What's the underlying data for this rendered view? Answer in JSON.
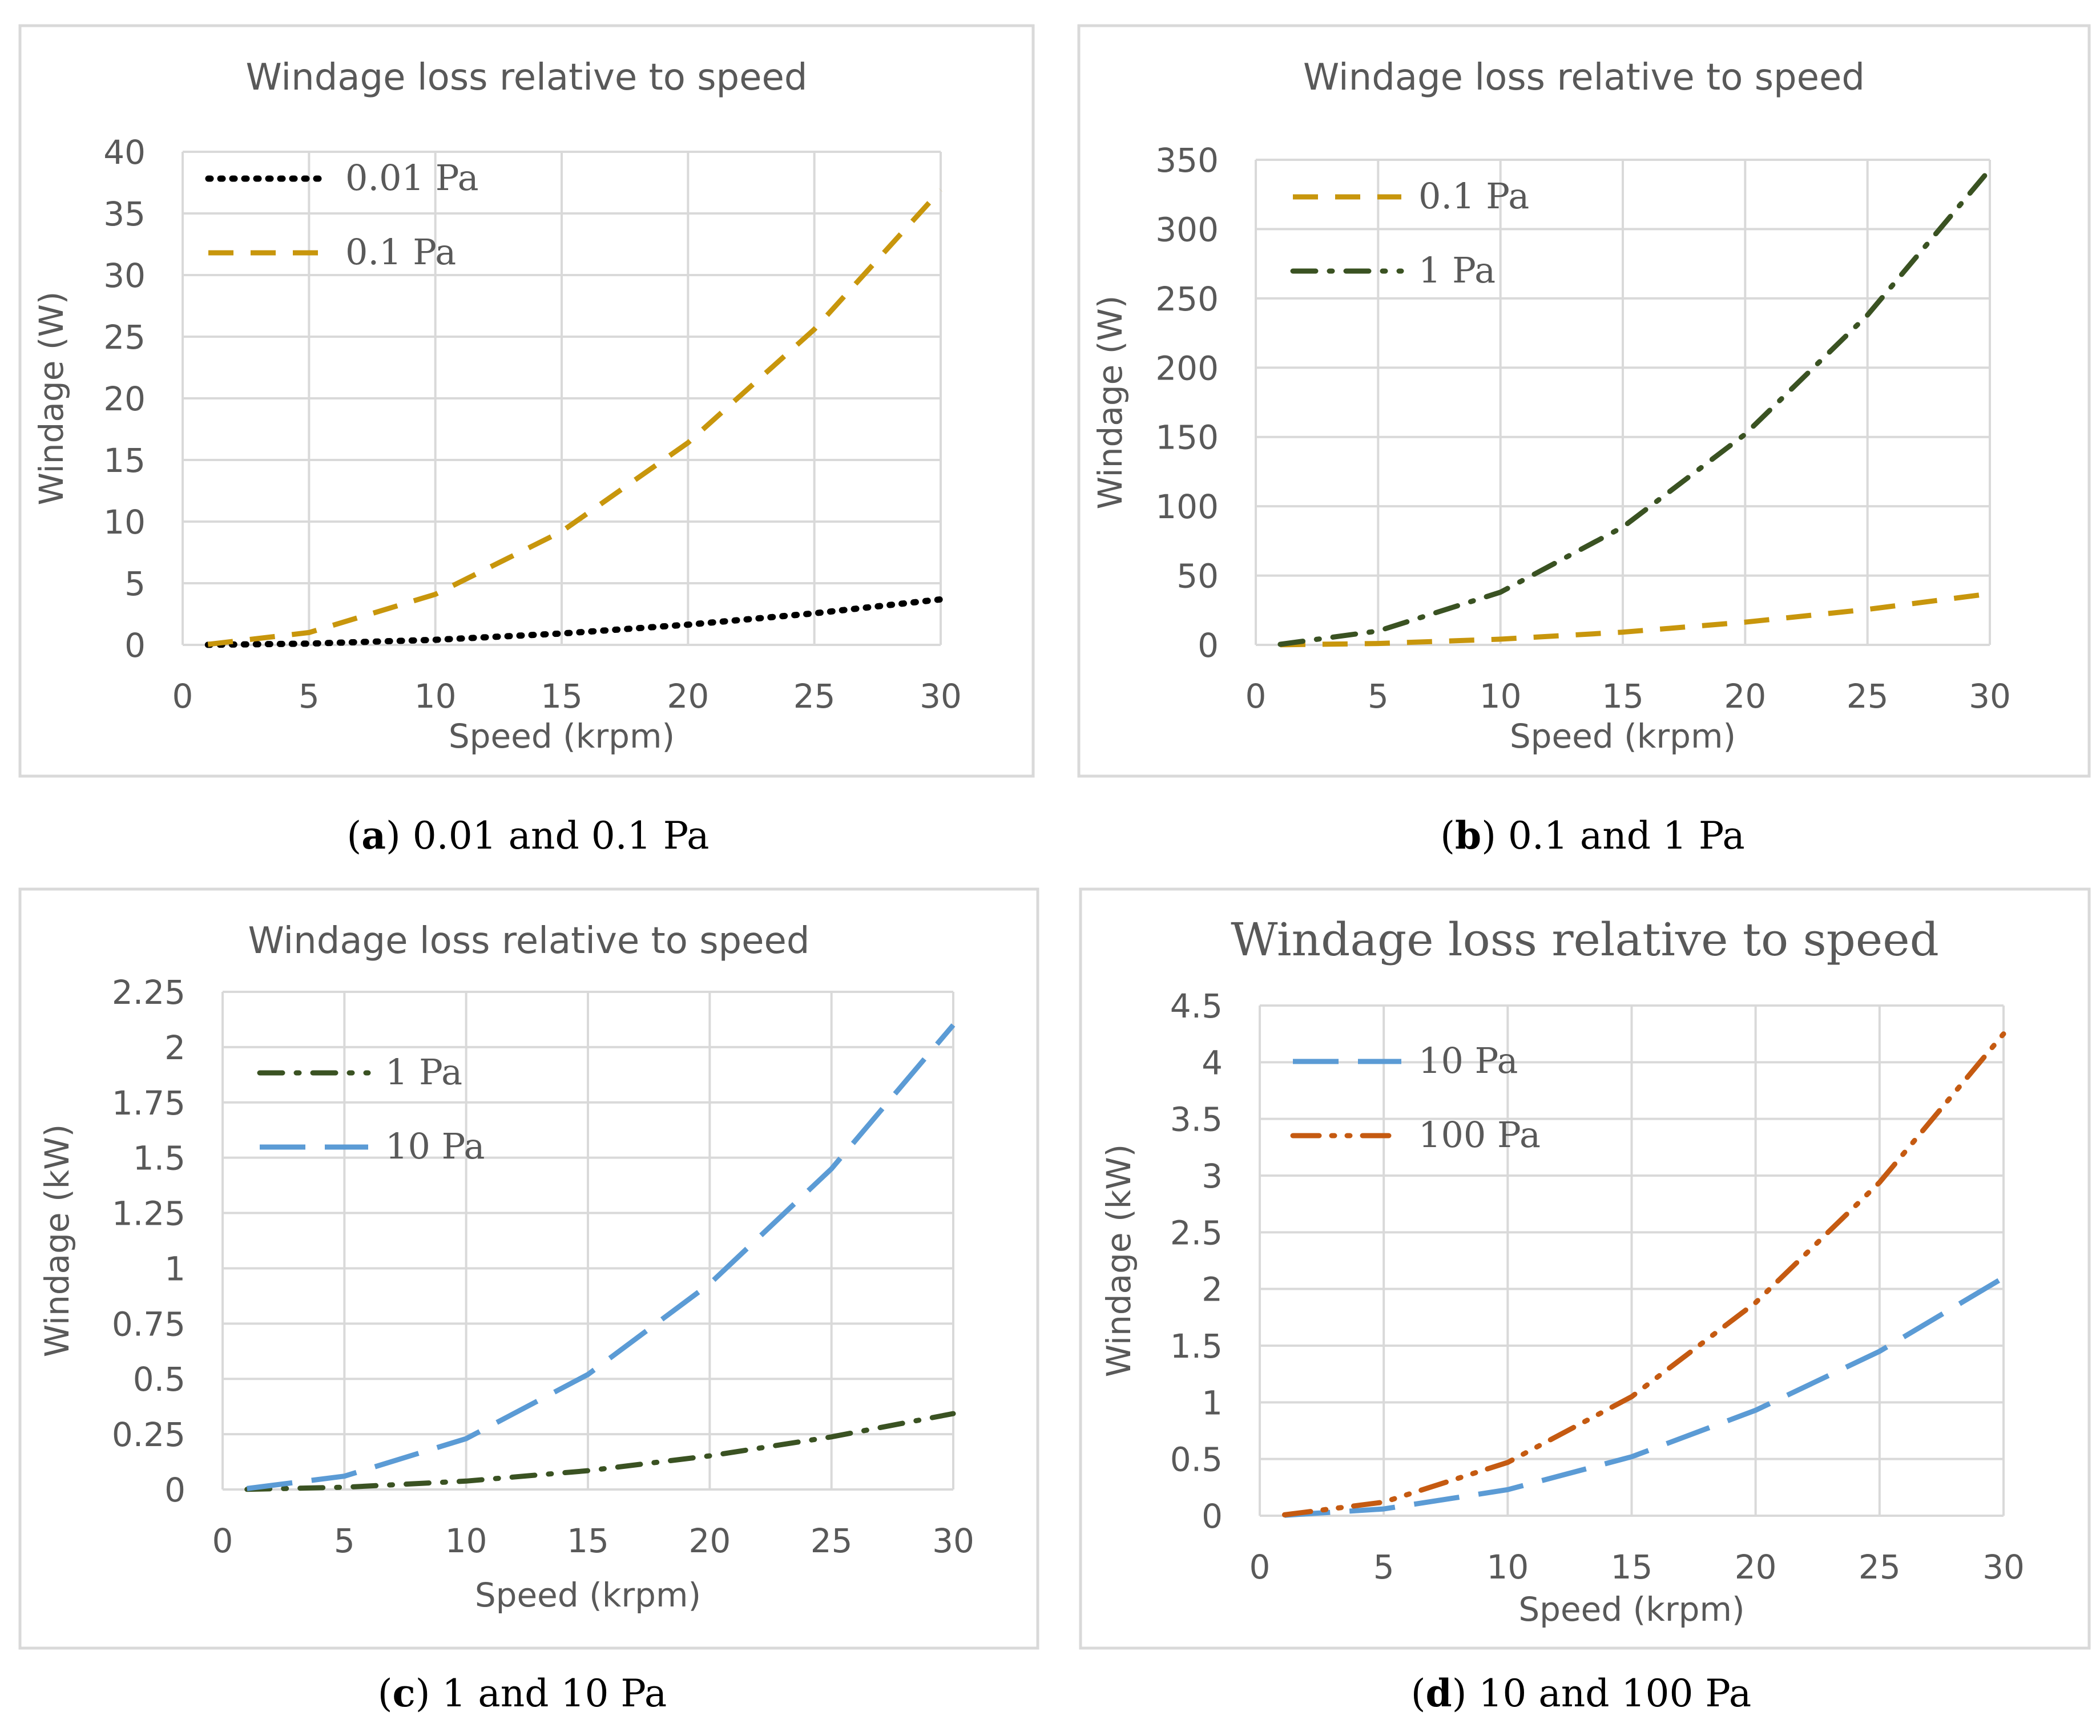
{
  "chart_data": [
    {
      "type": "line",
      "panel_label": "a",
      "caption": "0.01 and 0.1 Pa",
      "title": "Windage loss relative to speed",
      "xlabel": "Speed (krpm)",
      "ylabel": "Windage  (W)",
      "xlim": [
        0,
        30
      ],
      "ylim": [
        0,
        40
      ],
      "xticks": [
        "0",
        "5",
        "10",
        "15",
        "20",
        "25",
        "30"
      ],
      "yticks": [
        "0",
        "5",
        "10",
        "15",
        "20",
        "25",
        "30",
        "35",
        "40"
      ],
      "legend_position": "top-left",
      "series": [
        {
          "name": "0.01 Pa",
          "style": "dotted",
          "color": "#000000",
          "x": [
            1,
            5,
            10,
            15,
            20,
            25,
            30
          ],
          "y": [
            0.004,
            0.1,
            0.41,
            0.92,
            1.64,
            2.56,
            3.69
          ]
        },
        {
          "name": "0.1 Pa",
          "style": "dashed",
          "color": "#c8960c",
          "x": [
            1,
            5,
            10,
            15,
            20,
            25,
            30
          ],
          "y": [
            0.04,
            1.0,
            4.1,
            9.2,
            16.4,
            25.6,
            36.9
          ]
        }
      ]
    },
    {
      "type": "line",
      "panel_label": "b",
      "caption": "0.1 and 1 Pa",
      "title": "Windage loss relative to speed",
      "xlabel": "Speed (krpm)",
      "ylabel": "Windage  (W)",
      "xlim": [
        0,
        30
      ],
      "ylim": [
        0,
        350
      ],
      "xticks": [
        "0",
        "5",
        "10",
        "15",
        "20",
        "25",
        "30"
      ],
      "yticks": [
        "0",
        "50",
        "100",
        "150",
        "200",
        "250",
        "300",
        "350"
      ],
      "legend_position": "top-left",
      "series": [
        {
          "name": "0.1 Pa",
          "style": "dashed",
          "color": "#c8960c",
          "x": [
            1,
            5,
            10,
            15,
            20,
            25,
            30
          ],
          "y": [
            0.04,
            1.0,
            4.1,
            9.2,
            16.4,
            25.6,
            36.9
          ]
        },
        {
          "name": "1 Pa",
          "style": "dashdot",
          "color": "#3a5222",
          "x": [
            1,
            5,
            10,
            15,
            20,
            25,
            30
          ],
          "y": [
            0.4,
            10,
            38,
            85,
            152,
            238,
            343
          ]
        }
      ]
    },
    {
      "type": "line",
      "panel_label": "c",
      "caption": "1 and 10 Pa",
      "title": "Windage loss relative to speed",
      "xlabel": "Speed (krpm)",
      "ylabel": "Windage (kW)",
      "xlim": [
        0,
        30
      ],
      "ylim": [
        0,
        2.25
      ],
      "xticks": [
        "0",
        "5",
        "10",
        "15",
        "20",
        "25",
        "30"
      ],
      "yticks": [
        "0",
        "0.25",
        "0.5",
        "0.75",
        "1",
        "1.25",
        "1.5",
        "1.75",
        "2",
        "2.25"
      ],
      "legend_position": "top-left",
      "series": [
        {
          "name": "1 Pa",
          "style": "dashdot",
          "color": "#3a5222",
          "x": [
            1,
            5,
            10,
            15,
            20,
            25,
            30
          ],
          "y": [
            0.0004,
            0.01,
            0.038,
            0.085,
            0.152,
            0.238,
            0.343
          ]
        },
        {
          "name": "10 Pa",
          "style": "longdash",
          "color": "#5b9bd5",
          "x": [
            1,
            5,
            10,
            15,
            20,
            25,
            30
          ],
          "y": [
            0.004,
            0.06,
            0.23,
            0.52,
            0.93,
            1.45,
            2.1
          ]
        }
      ]
    },
    {
      "type": "line",
      "panel_label": "d",
      "caption": "10 and 100 Pa",
      "title": "Windage loss relative to speed",
      "xlabel": "Speed (krpm)",
      "ylabel": "Windage (kW)",
      "xlim": [
        0,
        30
      ],
      "ylim": [
        0,
        4.5
      ],
      "xticks": [
        "0",
        "5",
        "10",
        "15",
        "20",
        "25",
        "30"
      ],
      "yticks": [
        "0",
        "0.5",
        "1",
        "1.5",
        "2",
        "2.5",
        "3",
        "3.5",
        "4",
        "4.5"
      ],
      "legend_position": "top-left",
      "series": [
        {
          "name": "10 Pa",
          "style": "longdash",
          "color": "#5b9bd5",
          "x": [
            1,
            5,
            10,
            15,
            20,
            25,
            30
          ],
          "y": [
            0.004,
            0.06,
            0.23,
            0.52,
            0.93,
            1.45,
            2.1
          ]
        },
        {
          "name": "100 Pa",
          "style": "dashdotdot",
          "color": "#c55a11",
          "x": [
            1,
            5,
            10,
            15,
            20,
            25,
            30
          ],
          "y": [
            0.008,
            0.12,
            0.47,
            1.05,
            1.88,
            2.94,
            4.25
          ]
        }
      ]
    }
  ]
}
